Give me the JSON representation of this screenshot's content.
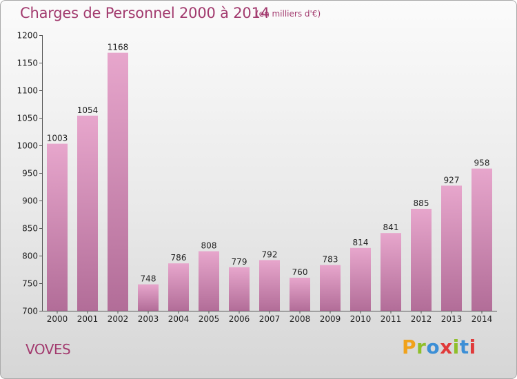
{
  "header": {
    "title": "Charges de Personnel 2000 à 2014",
    "subtitle": "(en milliers d'€)"
  },
  "footer": {
    "commune": "VOVES",
    "logo_text": "Proxiti"
  },
  "colors": {
    "title": "#a23a6e",
    "bar_top": "#e7a6cc",
    "bar_bottom": "#b26d98",
    "logo_letters": [
      "#f0a21b",
      "#8fbf2a",
      "#3c8fd6",
      "#e03a3a",
      "#8fbf2a",
      "#3c8fd6",
      "#e03a3a"
    ]
  },
  "chart_data": {
    "type": "bar",
    "categories": [
      "2000",
      "2001",
      "2002",
      "2003",
      "2004",
      "2005",
      "2006",
      "2007",
      "2008",
      "2009",
      "2010",
      "2011",
      "2012",
      "2013",
      "2014"
    ],
    "values": [
      1003,
      1054,
      1168,
      748,
      786,
      808,
      779,
      792,
      760,
      783,
      814,
      841,
      885,
      927,
      958
    ],
    "title": "Charges de Personnel 2000 à 2014",
    "subtitle": "(en milliers d'€)",
    "xlabel": "",
    "ylabel": "",
    "ylim": [
      700,
      1200
    ],
    "yticks": [
      700,
      750,
      800,
      850,
      900,
      950,
      1000,
      1050,
      1100,
      1150,
      1200
    ],
    "grid": false,
    "legend": "none"
  }
}
